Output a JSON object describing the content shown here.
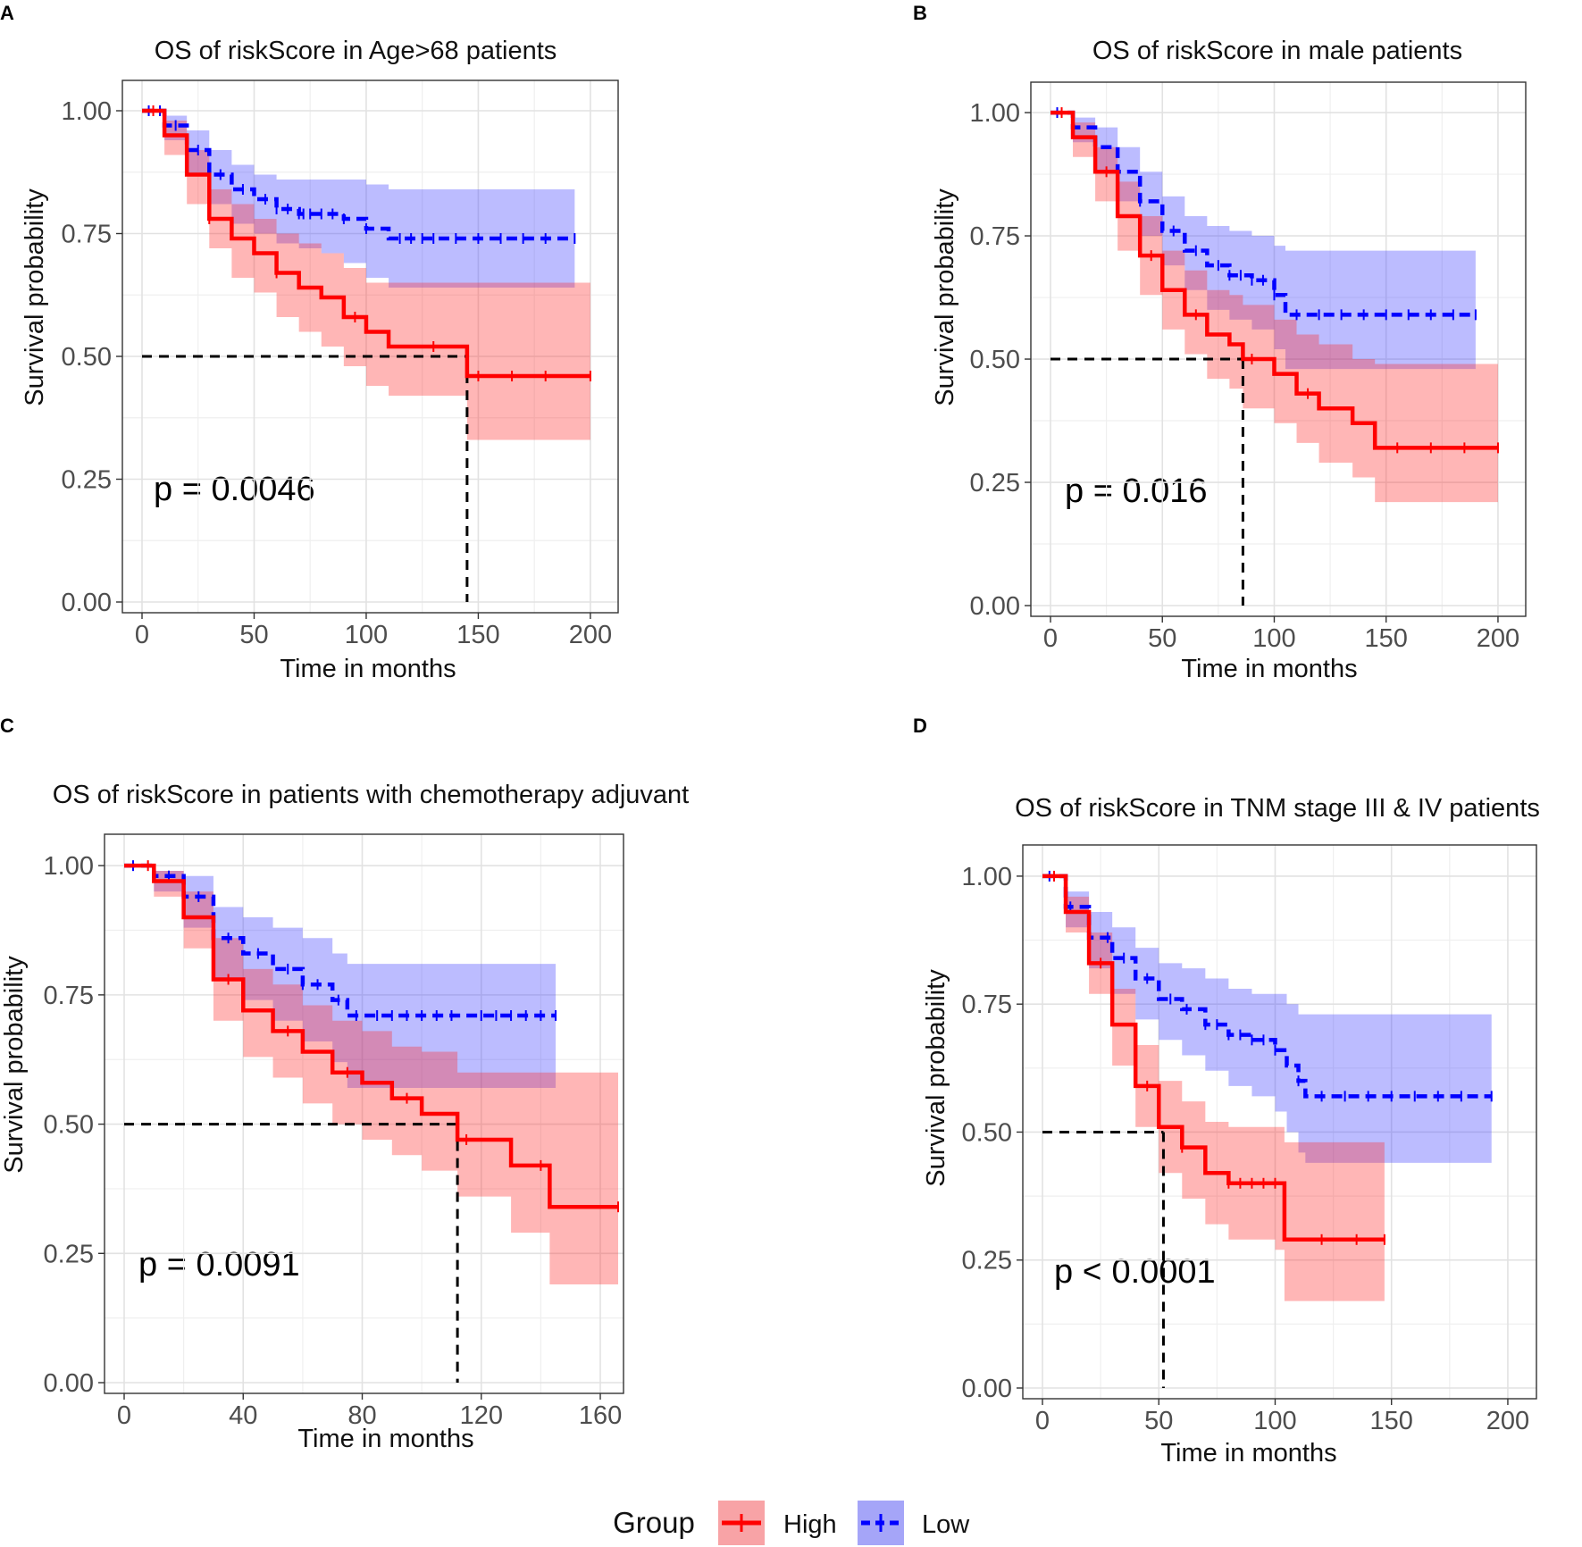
{
  "legend": {
    "title": "Group",
    "items": [
      {
        "label": "High",
        "color": "#ff0000",
        "fill": "#f8a3a6"
      },
      {
        "label": "Low",
        "color": "#0000ff",
        "fill": "#a5a5f8"
      }
    ]
  },
  "chart_data": [
    {
      "type": "line",
      "panel_label": "A",
      "title": "OS of riskScore in Age>68 patients",
      "xlabel": "Time in months",
      "ylabel": "Survival probability",
      "xlim": [
        0,
        210
      ],
      "ylim": [
        0,
        1.04
      ],
      "x_ticks": [
        "0",
        "50",
        "100",
        "150",
        "200"
      ],
      "x_tick_values": [
        0,
        50,
        100,
        150,
        200
      ],
      "y_ticks": [
        "0.00",
        "0.25",
        "0.50",
        "0.75",
        "1.00"
      ],
      "y_tick_values": [
        0,
        0.25,
        0.5,
        0.75,
        1.0
      ],
      "p_value": "p = 0.0046",
      "median_survival": {
        "x": 145
      },
      "series": [
        {
          "name": "Low",
          "color": "#0000ff",
          "dash": true,
          "x": [
            0,
            10,
            20,
            30,
            40,
            50,
            60,
            70,
            80,
            90,
            100,
            110,
            193
          ],
          "y": [
            1.0,
            0.97,
            0.92,
            0.87,
            0.84,
            0.82,
            0.8,
            0.79,
            0.79,
            0.78,
            0.76,
            0.74,
            0.74
          ],
          "ci_upper": [
            1.0,
            0.99,
            0.96,
            0.92,
            0.89,
            0.87,
            0.86,
            0.86,
            0.86,
            0.86,
            0.85,
            0.84,
            0.84
          ],
          "ci_lower": [
            1.0,
            0.94,
            0.87,
            0.81,
            0.77,
            0.75,
            0.73,
            0.72,
            0.71,
            0.69,
            0.66,
            0.64,
            0.64
          ],
          "censor_x": [
            3,
            8,
            15,
            25,
            35,
            45,
            55,
            60,
            65,
            70,
            72,
            75,
            80,
            85,
            90,
            100,
            115,
            120,
            125,
            130,
            140,
            150,
            160,
            170,
            180,
            193
          ]
        },
        {
          "name": "High",
          "color": "#ff0000",
          "dash": false,
          "x": [
            0,
            10,
            20,
            30,
            40,
            50,
            60,
            70,
            80,
            90,
            100,
            110,
            120,
            140,
            145,
            200
          ],
          "y": [
            1.0,
            0.95,
            0.87,
            0.78,
            0.74,
            0.71,
            0.67,
            0.64,
            0.62,
            0.58,
            0.55,
            0.52,
            0.52,
            0.52,
            0.46,
            0.46
          ],
          "ci_upper": [
            1.0,
            0.98,
            0.92,
            0.84,
            0.81,
            0.78,
            0.75,
            0.73,
            0.71,
            0.68,
            0.65,
            0.65,
            0.65,
            0.65,
            0.65,
            0.65
          ],
          "ci_lower": [
            1.0,
            0.91,
            0.81,
            0.72,
            0.66,
            0.63,
            0.58,
            0.55,
            0.52,
            0.48,
            0.44,
            0.42,
            0.42,
            0.42,
            0.33,
            0.33
          ],
          "censor_x": [
            5,
            30,
            60,
            95,
            130,
            150,
            165,
            180,
            200
          ]
        }
      ]
    },
    {
      "type": "line",
      "panel_label": "B",
      "title": "OS of riskScore in male patients",
      "xlabel": "Time in months",
      "ylabel": "Survival probability",
      "xlim": [
        0,
        210
      ],
      "ylim": [
        0,
        1.04
      ],
      "x_ticks": [
        "0",
        "50",
        "100",
        "150",
        "200"
      ],
      "x_tick_values": [
        0,
        50,
        100,
        150,
        200
      ],
      "y_ticks": [
        "0.00",
        "0.25",
        "0.50",
        "0.75",
        "1.00"
      ],
      "y_tick_values": [
        0,
        0.25,
        0.5,
        0.75,
        1.0
      ],
      "p_value": "p = 0.016",
      "median_survival": {
        "x": 86
      },
      "series": [
        {
          "name": "Low",
          "color": "#0000ff",
          "dash": true,
          "x": [
            0,
            10,
            20,
            30,
            40,
            50,
            60,
            70,
            80,
            90,
            100,
            105,
            190
          ],
          "y": [
            1.0,
            0.97,
            0.93,
            0.88,
            0.82,
            0.76,
            0.72,
            0.69,
            0.67,
            0.66,
            0.63,
            0.59,
            0.59
          ],
          "ci_upper": [
            1.0,
            0.99,
            0.97,
            0.93,
            0.88,
            0.83,
            0.79,
            0.77,
            0.76,
            0.75,
            0.73,
            0.72,
            0.72
          ],
          "ci_lower": [
            1.0,
            0.94,
            0.88,
            0.82,
            0.75,
            0.69,
            0.64,
            0.6,
            0.58,
            0.56,
            0.52,
            0.48,
            0.48
          ],
          "censor_x": [
            3,
            10,
            20,
            30,
            40,
            55,
            65,
            75,
            80,
            85,
            90,
            95,
            100,
            110,
            120,
            130,
            140,
            150,
            160,
            170,
            180,
            190
          ]
        },
        {
          "name": "High",
          "color": "#ff0000",
          "dash": false,
          "x": [
            0,
            10,
            20,
            30,
            40,
            50,
            60,
            70,
            80,
            86,
            100,
            110,
            120,
            135,
            145,
            200
          ],
          "y": [
            1.0,
            0.95,
            0.88,
            0.79,
            0.71,
            0.64,
            0.59,
            0.55,
            0.53,
            0.5,
            0.47,
            0.43,
            0.4,
            0.37,
            0.32,
            0.32
          ],
          "ci_upper": [
            1.0,
            0.98,
            0.93,
            0.86,
            0.79,
            0.72,
            0.68,
            0.64,
            0.63,
            0.61,
            0.58,
            0.55,
            0.53,
            0.5,
            0.49,
            0.49
          ],
          "ci_lower": [
            1.0,
            0.91,
            0.82,
            0.72,
            0.63,
            0.56,
            0.51,
            0.46,
            0.44,
            0.4,
            0.37,
            0.33,
            0.29,
            0.26,
            0.21,
            0.21
          ],
          "censor_x": [
            5,
            25,
            45,
            65,
            90,
            115,
            155,
            170,
            185,
            200
          ]
        }
      ]
    },
    {
      "type": "line",
      "panel_label": "C",
      "title": "OS of riskScore in patients with chemotherapy adjuvant",
      "xlabel": "Time in months",
      "ylabel": "Survival probability",
      "xlim": [
        0,
        166
      ],
      "ylim": [
        0,
        1.04
      ],
      "x_ticks": [
        "0",
        "40",
        "80",
        "120",
        "160"
      ],
      "x_tick_values": [
        0,
        40,
        80,
        120,
        160
      ],
      "y_ticks": [
        "0.00",
        "0.25",
        "0.50",
        "0.75",
        "1.00"
      ],
      "y_tick_values": [
        0,
        0.25,
        0.5,
        0.75,
        1.0
      ],
      "p_value": "p = 0.0091",
      "median_survival": {
        "x": 112
      },
      "series": [
        {
          "name": "Low",
          "color": "#0000ff",
          "dash": true,
          "x": [
            0,
            5,
            10,
            20,
            30,
            40,
            50,
            60,
            70,
            75,
            145
          ],
          "y": [
            1.0,
            1.0,
            0.98,
            0.94,
            0.86,
            0.83,
            0.8,
            0.77,
            0.74,
            0.71,
            0.71
          ],
          "ci_upper": [
            1.0,
            1.0,
            0.99,
            0.98,
            0.92,
            0.9,
            0.88,
            0.86,
            0.83,
            0.81,
            0.81
          ],
          "ci_lower": [
            1.0,
            1.0,
            0.95,
            0.88,
            0.78,
            0.74,
            0.7,
            0.66,
            0.62,
            0.57,
            0.57
          ],
          "censor_x": [
            3,
            15,
            25,
            30,
            35,
            45,
            55,
            60,
            65,
            72,
            78,
            85,
            90,
            95,
            100,
            105,
            110,
            120,
            125,
            130,
            135,
            140,
            145
          ]
        },
        {
          "name": "High",
          "color": "#ff0000",
          "dash": false,
          "x": [
            0,
            5,
            10,
            20,
            30,
            40,
            50,
            60,
            70,
            80,
            90,
            100,
            112,
            130,
            143,
            166
          ],
          "y": [
            1.0,
            1.0,
            0.97,
            0.9,
            0.78,
            0.72,
            0.68,
            0.64,
            0.6,
            0.58,
            0.55,
            0.52,
            0.47,
            0.42,
            0.34,
            0.34
          ],
          "ci_upper": [
            1.0,
            1.0,
            0.99,
            0.95,
            0.86,
            0.8,
            0.77,
            0.73,
            0.7,
            0.68,
            0.65,
            0.64,
            0.6,
            0.6,
            0.6,
            0.6
          ],
          "ci_lower": [
            1.0,
            1.0,
            0.94,
            0.84,
            0.7,
            0.63,
            0.59,
            0.54,
            0.5,
            0.47,
            0.44,
            0.41,
            0.36,
            0.29,
            0.19,
            0.19
          ],
          "censor_x": [
            8,
            35,
            55,
            75,
            95,
            115,
            140,
            166
          ]
        }
      ]
    },
    {
      "type": "line",
      "panel_label": "D",
      "title": "OS of riskScore in TNM stage III & IV patients",
      "xlabel": "Time in months",
      "ylabel": "Survival probability",
      "xlim": [
        0,
        210
      ],
      "ylim": [
        0,
        1.04
      ],
      "x_ticks": [
        "0",
        "50",
        "100",
        "150",
        "200"
      ],
      "x_tick_values": [
        0,
        50,
        100,
        150,
        200
      ],
      "y_ticks": [
        "0.00",
        "0.25",
        "0.50",
        "0.75",
        "1.00"
      ],
      "y_tick_values": [
        0,
        0.25,
        0.5,
        0.75,
        1.0
      ],
      "p_value": "p < 0.0001",
      "median_survival": {
        "x": 52
      },
      "series": [
        {
          "name": "Low",
          "color": "#0000ff",
          "dash": true,
          "x": [
            0,
            10,
            20,
            30,
            40,
            50,
            60,
            70,
            80,
            90,
            100,
            105,
            110,
            113,
            193
          ],
          "y": [
            1.0,
            0.94,
            0.88,
            0.84,
            0.8,
            0.76,
            0.74,
            0.71,
            0.69,
            0.68,
            0.66,
            0.63,
            0.6,
            0.57,
            0.57
          ],
          "ci_upper": [
            1.0,
            0.97,
            0.93,
            0.9,
            0.86,
            0.83,
            0.82,
            0.8,
            0.78,
            0.77,
            0.77,
            0.75,
            0.73,
            0.73,
            0.73
          ],
          "ci_lower": [
            1.0,
            0.9,
            0.82,
            0.77,
            0.72,
            0.68,
            0.65,
            0.62,
            0.59,
            0.57,
            0.54,
            0.5,
            0.46,
            0.44,
            0.44
          ],
          "censor_x": [
            3,
            12,
            20,
            28,
            35,
            45,
            55,
            62,
            70,
            75,
            80,
            85,
            90,
            95,
            100,
            110,
            120,
            130,
            140,
            150,
            160,
            170,
            180,
            193
          ]
        },
        {
          "name": "High",
          "color": "#ff0000",
          "dash": false,
          "x": [
            0,
            10,
            20,
            30,
            40,
            50,
            60,
            70,
            80,
            100,
            104,
            147
          ],
          "y": [
            1.0,
            0.93,
            0.83,
            0.71,
            0.59,
            0.51,
            0.47,
            0.42,
            0.4,
            0.4,
            0.29,
            0.29
          ],
          "ci_upper": [
            1.0,
            0.96,
            0.89,
            0.78,
            0.67,
            0.6,
            0.56,
            0.52,
            0.51,
            0.51,
            0.48,
            0.48
          ],
          "ci_lower": [
            1.0,
            0.89,
            0.77,
            0.63,
            0.51,
            0.42,
            0.37,
            0.32,
            0.29,
            0.27,
            0.17,
            0.17
          ],
          "censor_x": [
            5,
            25,
            45,
            60,
            80,
            85,
            90,
            95,
            100,
            120,
            135,
            147
          ]
        }
      ]
    }
  ]
}
